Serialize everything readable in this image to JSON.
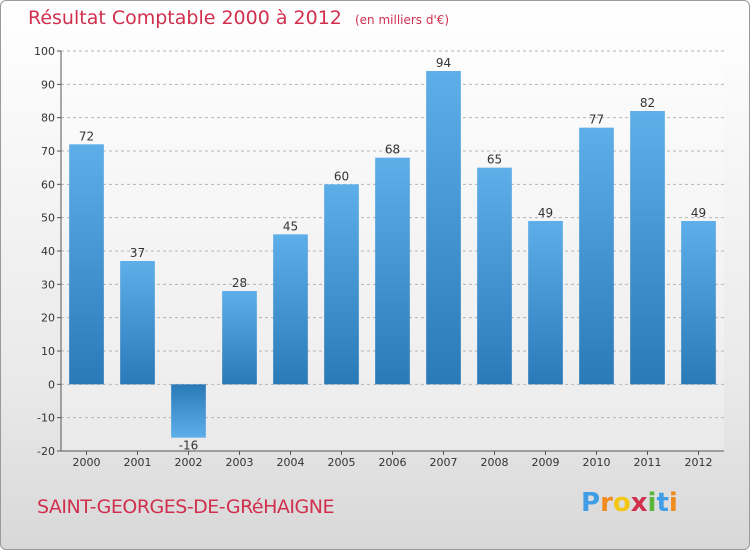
{
  "header": {
    "title": "Résultat Comptable 2000 à 2012",
    "subtitle": "(en milliers d'€)"
  },
  "footer": {
    "commune": "SAINT-GEORGES-DE-GRéHAIGNE",
    "logo_letters": [
      "P",
      "r",
      "o",
      "x",
      "i",
      "t",
      "i"
    ]
  },
  "colors": {
    "bar_light": "#5eaeea",
    "bar_dark": "#2a7ab8",
    "title": "#d0304e",
    "logo": [
      "#3f9ee6",
      "#f08b1e",
      "#f3c612",
      "#d0304e",
      "#5cb53b",
      "#3f9ee6",
      "#f08b1e"
    ]
  },
  "chart_data": {
    "type": "bar",
    "title": "Résultat Comptable 2000 à 2012",
    "subtitle": "(en milliers d'€)",
    "categories": [
      "2000",
      "2001",
      "2002",
      "2003",
      "2004",
      "2005",
      "2006",
      "2007",
      "2008",
      "2009",
      "2010",
      "2011",
      "2012"
    ],
    "values": [
      72,
      37,
      -16,
      28,
      45,
      60,
      68,
      94,
      65,
      49,
      77,
      82,
      49
    ],
    "value_labels": [
      "72",
      "37",
      "-16",
      "28",
      "45",
      "60",
      "68",
      "94",
      "65",
      "49",
      "77",
      "82",
      "49"
    ],
    "yticks": [
      "-20",
      "-10",
      "0",
      "10",
      "20",
      "30",
      "40",
      "50",
      "60",
      "70",
      "80",
      "90",
      "100"
    ],
    "ylim": [
      -20,
      100
    ],
    "ytick_step": 10,
    "grid": "horizontal dashed",
    "xlabel": "",
    "ylabel": ""
  }
}
